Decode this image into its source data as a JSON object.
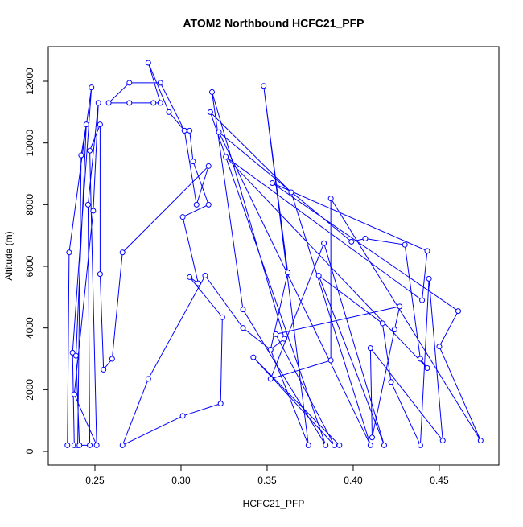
{
  "chart_data": {
    "type": "line",
    "title": "ATOM2 Northbound HCFC21_PFP",
    "xlabel": "HCFC21_PFP",
    "ylabel": "Altitude (m)",
    "color": "#0000ff",
    "xlim": [
      0.2229,
      0.4846
    ],
    "ylim": [
      -443,
      13122
    ],
    "xticks": [
      0.25,
      {
        "value": 0.3,
        "label": "0.30"
      },
      0.35,
      {
        "value": 0.4,
        "label": "0.40"
      },
      0.45
    ],
    "yticks": [
      0,
      2000,
      4000,
      6000,
      8000,
      10000,
      12000
    ],
    "x": [
      0.234,
      0.235,
      0.248,
      0.237,
      0.238,
      0.24,
      0.242,
      0.245,
      0.239,
      0.241,
      0.247,
      0.246,
      0.252,
      0.249,
      0.238,
      0.251,
      0.247,
      0.253,
      0.253,
      0.255,
      0.26,
      0.266,
      0.316,
      0.309,
      0.302,
      0.288,
      0.27,
      0.258,
      0.27,
      0.284,
      0.288,
      0.281,
      0.293,
      0.302,
      0.305,
      0.307,
      0.316,
      0.301,
      0.31,
      0.305,
      0.324,
      0.323,
      0.301,
      0.266,
      0.281,
      0.314,
      0.336,
      0.352,
      0.374,
      0.348,
      0.362,
      0.352,
      0.36,
      0.318,
      0.336,
      0.384,
      0.317,
      0.364,
      0.41,
      0.322,
      0.399,
      0.407,
      0.43,
      0.439,
      0.443,
      0.326,
      0.44,
      0.443,
      0.353,
      0.461,
      0.45,
      0.474,
      0.387,
      0.387,
      0.352,
      0.383,
      0.418,
      0.38,
      0.417,
      0.422,
      0.439,
      0.444,
      0.452,
      0.41,
      0.411,
      0.424,
      0.427,
      0.355,
      0.389,
      0.342,
      0.392
    ],
    "values": [
      200,
      6450,
      11800,
      3200,
      200,
      200,
      9600,
      10600,
      3100,
      200,
      200,
      8000,
      11300,
      7800,
      1850,
      200,
      9750,
      10600,
      5750,
      2650,
      3000,
      6450,
      9250,
      8000,
      10400,
      11950,
      11950,
      11300,
      11300,
      11300,
      11300,
      12600,
      11000,
      10400,
      10400,
      9400,
      8000,
      7600,
      5450,
      5650,
      4350,
      1550,
      1150,
      200,
      2350,
      5700,
      4000,
      3300,
      200,
      11850,
      5800,
      3300,
      3650,
      11650,
      4600,
      200,
      11000,
      8400,
      200,
      10350,
      6800,
      6900,
      6700,
      3000,
      2700,
      9550,
      4900,
      6500,
      8700,
      4550,
      3400,
      350,
      8200,
      2950,
      2350,
      6750,
      200,
      5700,
      4150,
      2250,
      200,
      5600,
      350,
      3350,
      450,
      3950,
      4700,
      3800,
      200,
      3050,
      200
    ]
  }
}
